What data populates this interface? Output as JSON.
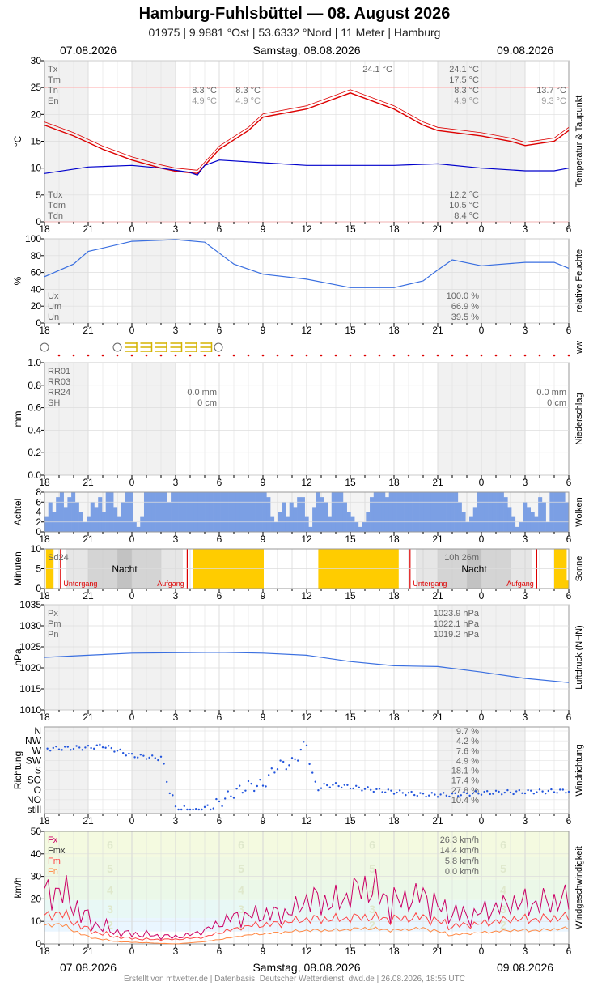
{
  "header": {
    "title": "Hamburg-Fuhlsbüttel  —  08. August 2026",
    "subtitle": "01975  |  9.9881 °Ost  |  53.6332 °Nord  |  11 Meter  |  Hamburg",
    "date_left": "07.08.2026",
    "date_center": "Samstag, 08.08.2026",
    "date_right": "09.08.2026"
  },
  "footer": {
    "date_left": "07.08.2026",
    "date_center": "Samstag, 08.08.2026",
    "date_right": "09.08.2026",
    "credits": "Erstellt von mtwetter.de | Datenbasis: Deutscher Wetterdienst, dwd.de | 26.08.2026, 18:55 UTC"
  },
  "x_axis": {
    "tick_labels": [
      "18",
      "21",
      "0",
      "3",
      "6",
      "9",
      "12",
      "15",
      "18",
      "21",
      "0",
      "3",
      "6"
    ],
    "hours_from_start": [
      0,
      3,
      6,
      9,
      12,
      15,
      18,
      21,
      24,
      27,
      30,
      33,
      36
    ]
  },
  "colors": {
    "temp": "#dd0000",
    "dew": "#0000cc",
    "humidity": "#3a6fe0",
    "clouds": "#7b9fe4",
    "sun": "#ffcc00",
    "pressure": "#3a6fe0",
    "wind_gust": "#cc0066",
    "wind_mean": "#ff4444",
    "wind_min": "#ff8844",
    "wind_dir": "#2255dd",
    "night_marker": "#dd0000",
    "grid": "#dddddd"
  },
  "chart_data": [
    {
      "id": "temperature",
      "type": "line",
      "side_label": "Temperatur & Taupunkt",
      "ylabel": "°C",
      "ylim": [
        0,
        30
      ],
      "yticks": [
        0,
        5,
        10,
        15,
        20,
        25,
        30
      ],
      "legend_top": [
        "Tx",
        "Tm",
        "Tn",
        "En"
      ],
      "values_top_day1": [
        "8.3 °C",
        "4.9 °C"
      ],
      "values_top_day1b": [
        "8.3 °C",
        "4.9 °C"
      ],
      "max_marker": "24.1 °C",
      "values_top_day2": [
        "24.1 °C",
        "17.5 °C",
        "8.3 °C",
        "4.9 °C"
      ],
      "values_top_day3": [
        "13.7 °C",
        "9.3 °C"
      ],
      "legend_bottom": [
        "Tdx",
        "Tdm",
        "Tdn"
      ],
      "values_bottom_day2": [
        "12.2 °C",
        "10.5 °C",
        "8.4 °C"
      ],
      "series": [
        {
          "name": "Temperatur",
          "points": [
            [
              0,
              18.0
            ],
            [
              2,
              16.0
            ],
            [
              4,
              13.5
            ],
            [
              6,
              11.5
            ],
            [
              8,
              10.0
            ],
            [
              9,
              9.4
            ],
            [
              10.5,
              9.0
            ],
            [
              11,
              10.5
            ],
            [
              12,
              13.5
            ],
            [
              14,
              17.0
            ],
            [
              15,
              19.5
            ],
            [
              18,
              21.0
            ],
            [
              21,
              24.0
            ],
            [
              24,
              21.0
            ],
            [
              26,
              18.0
            ],
            [
              27,
              17.0
            ],
            [
              30,
              16.0
            ],
            [
              32,
              15.0
            ],
            [
              33,
              14.2
            ],
            [
              35,
              15.0
            ],
            [
              36,
              17.0
            ]
          ]
        },
        {
          "name": "Taupunkt",
          "points": [
            [
              0,
              9.0
            ],
            [
              3,
              10.2
            ],
            [
              6,
              10.5
            ],
            [
              8,
              10.0
            ],
            [
              10,
              9.2
            ],
            [
              10.5,
              8.7
            ],
            [
              11,
              10.5
            ],
            [
              12,
              11.5
            ],
            [
              15,
              11.0
            ],
            [
              18,
              10.5
            ],
            [
              21,
              10.5
            ],
            [
              24,
              10.5
            ],
            [
              27,
              10.8
            ],
            [
              30,
              10.0
            ],
            [
              33,
              9.5
            ],
            [
              35,
              9.5
            ],
            [
              36,
              10.0
            ]
          ]
        }
      ]
    },
    {
      "id": "humidity",
      "type": "line",
      "side_label": "relative Feuchte",
      "ylabel": "%",
      "ylim": [
        0,
        100
      ],
      "yticks": [
        0,
        20,
        40,
        60,
        80,
        100
      ],
      "legend": [
        "Ux",
        "Um",
        "Un"
      ],
      "values": [
        "100.0 %",
        "66.9 %",
        "39.5 %"
      ],
      "series": [
        {
          "name": "Feuchte",
          "points": [
            [
              0,
              55
            ],
            [
              2,
              70
            ],
            [
              3,
              85
            ],
            [
              6,
              97
            ],
            [
              9,
              99
            ],
            [
              11,
              96
            ],
            [
              12,
              83
            ],
            [
              13,
              70
            ],
            [
              15,
              58
            ],
            [
              18,
              52
            ],
            [
              21,
              42
            ],
            [
              24,
              42
            ],
            [
              26,
              50
            ],
            [
              27,
              63
            ],
            [
              28,
              75
            ],
            [
              30,
              68
            ],
            [
              33,
              72
            ],
            [
              35,
              72
            ],
            [
              36,
              65
            ]
          ]
        }
      ]
    },
    {
      "id": "ww",
      "type": "table",
      "side_label": "ww",
      "symbols_note": "○ ≡ ≡ ≡ ≡ ≡ ≡ ○"
    },
    {
      "id": "precip",
      "type": "bar",
      "side_label": "Niederschlag",
      "ylabel": "mm",
      "ylim": [
        0,
        1.0
      ],
      "yticks": [
        "0.0",
        "0.2",
        "0.4",
        "0.6",
        "0.8",
        "1.0"
      ],
      "legend": [
        "RR01",
        "RR03",
        "RR24",
        "SH"
      ],
      "values_day1": [
        "0.0 mm",
        "0 cm"
      ],
      "values_day2": [
        "0.0 mm",
        "0 cm"
      ],
      "values": []
    },
    {
      "id": "clouds",
      "type": "bar",
      "side_label": "Wolken",
      "ylabel": "Achtel",
      "ylim": [
        0,
        8
      ],
      "yticks": [
        0,
        2,
        4,
        6,
        8
      ],
      "values": [
        3,
        6,
        4,
        7,
        8,
        5,
        7,
        8,
        6,
        4,
        2,
        3,
        6,
        5,
        7,
        4,
        8,
        8,
        5,
        3,
        6,
        8,
        8,
        2,
        1,
        3,
        8,
        8,
        8,
        8,
        8,
        8,
        6,
        8,
        8,
        8,
        8,
        8,
        8,
        8,
        8,
        8,
        8,
        8,
        8,
        8,
        8,
        8,
        8,
        8,
        8,
        8,
        8,
        8,
        8,
        8,
        8,
        8,
        7,
        3,
        2,
        4,
        6,
        3,
        6,
        5,
        7,
        7,
        3,
        1,
        5,
        8,
        7,
        6,
        3,
        8,
        8,
        8,
        6,
        4,
        3,
        2,
        1,
        2,
        4,
        7,
        8,
        8,
        8,
        7,
        8,
        8,
        8,
        8,
        8,
        8,
        8,
        8,
        8,
        8,
        8,
        8,
        8,
        8,
        8,
        8,
        8,
        8,
        6,
        4,
        2,
        3,
        5,
        8,
        8,
        8,
        8,
        8,
        8,
        8,
        7,
        5,
        3,
        1,
        2,
        6,
        5,
        4,
        3,
        7,
        6,
        2,
        8,
        8,
        8,
        8,
        6
      ]
    },
    {
      "id": "sunshine",
      "type": "bar",
      "side_label": "Sonne",
      "ylabel": "Minuten",
      "ylim": [
        0,
        10
      ],
      "yticks": [
        0,
        5,
        10
      ],
      "legend": "Sd24",
      "total": "10h 26m",
      "night_label": "Nacht",
      "sunset_label": "Untergang",
      "sunrise_label": "Aufgang",
      "values": [
        10,
        10,
        10,
        10,
        10,
        10,
        10,
        10,
        10,
        10,
        10,
        10,
        10,
        10,
        10,
        10,
        10,
        10,
        10,
        10,
        10,
        10,
        10,
        10,
        10,
        10,
        10,
        10,
        10,
        10,
        10,
        10,
        10,
        10,
        10,
        10,
        10,
        10,
        10,
        10,
        10,
        10,
        10,
        10,
        10,
        10,
        10,
        10,
        10,
        10,
        10,
        10,
        10,
        10,
        10,
        10,
        10,
        10,
        10,
        10,
        10,
        10,
        10,
        10,
        10,
        10,
        10,
        10,
        10,
        10,
        2,
        4,
        2,
        3,
        1,
        2,
        3,
        1,
        2,
        4,
        3,
        5,
        1,
        2,
        4,
        3,
        2,
        3,
        2,
        1,
        3,
        5,
        2,
        4,
        1,
        3,
        2,
        1,
        4,
        3,
        2,
        1,
        3,
        8,
        10,
        10,
        10,
        10,
        10,
        10,
        10,
        10,
        10,
        10,
        10,
        10,
        10,
        10,
        10,
        10,
        10,
        10,
        10,
        10,
        10,
        10,
        10,
        10,
        10,
        10,
        10,
        10,
        10,
        10,
        10,
        10,
        10,
        10,
        10,
        10,
        10,
        10,
        10,
        10,
        10,
        10,
        10,
        10,
        10
      ]
    },
    {
      "id": "pressure",
      "type": "line",
      "side_label": "Luftdruck (NHN)",
      "ylabel": "hPa",
      "ylim": [
        1010,
        1035
      ],
      "yticks": [
        1010,
        1015,
        1020,
        1025,
        1030,
        1035
      ],
      "legend": [
        "Px",
        "Pm",
        "Pn"
      ],
      "values": [
        "1023.9 hPa",
        "1022.1 hPa",
        "1019.2 hPa"
      ],
      "series": [
        {
          "name": "Luftdruck",
          "points": [
            [
              0,
              1022.5
            ],
            [
              3,
              1023.0
            ],
            [
              6,
              1023.5
            ],
            [
              9,
              1023.6
            ],
            [
              12,
              1023.7
            ],
            [
              15,
              1023.5
            ],
            [
              18,
              1023.0
            ],
            [
              21,
              1021.5
            ],
            [
              24,
              1020.5
            ],
            [
              27,
              1020.3
            ],
            [
              30,
              1019.0
            ],
            [
              33,
              1017.5
            ],
            [
              36,
              1016.5
            ]
          ]
        }
      ]
    },
    {
      "id": "wind_dir",
      "type": "scatter",
      "side_label": "Windrichtung",
      "ylabel": "Richtung",
      "categories": [
        "N",
        "NW",
        "W",
        "SW",
        "S",
        "SO",
        "O",
        "NO",
        "still"
      ],
      "percentages": [
        "9.7 %",
        "4.2 %",
        "7.6 %",
        "4.9 %",
        "18.1 %",
        "17.4 %",
        "27.8 %",
        "10.4 %"
      ]
    },
    {
      "id": "wind_speed",
      "type": "line",
      "side_label": "Windgeschwindigkeit",
      "ylabel": "km/h",
      "ylim": [
        0,
        50
      ],
      "yticks": [
        0,
        10,
        20,
        30,
        40,
        50
      ],
      "legend": [
        "Fx",
        "Fmx",
        "Fm",
        "Fn"
      ],
      "values": [
        "26.3 km/h",
        "14.4 km/h",
        "5.8 km/h",
        "0.0 km/h"
      ],
      "beaufort": [
        "2",
        "3",
        "4",
        "5",
        "6"
      ],
      "series": [
        {
          "name": "Fx",
          "points": [
            [
              0,
              22
            ],
            [
              1,
              24
            ],
            [
              2,
              18
            ],
            [
              3,
              10
            ],
            [
              5,
              5
            ],
            [
              7,
              4
            ],
            [
              9,
              3
            ],
            [
              10,
              4
            ],
            [
              11,
              6
            ],
            [
              12,
              9
            ],
            [
              13,
              12
            ],
            [
              15,
              13
            ],
            [
              17,
              14
            ],
            [
              18,
              20
            ],
            [
              20,
              18
            ],
            [
              21,
              22
            ],
            [
              22,
              26
            ],
            [
              24,
              18
            ],
            [
              26,
              22
            ],
            [
              27,
              16
            ],
            [
              29,
              12
            ],
            [
              30,
              14
            ],
            [
              32,
              18
            ],
            [
              34,
              18
            ],
            [
              36,
              20
            ]
          ]
        },
        {
          "name": "Fm",
          "points": [
            [
              0,
              12
            ],
            [
              1,
              14
            ],
            [
              2,
              10
            ],
            [
              3,
              6
            ],
            [
              5,
              3
            ],
            [
              7,
              2
            ],
            [
              9,
              2
            ],
            [
              11,
              3
            ],
            [
              12,
              5
            ],
            [
              14,
              8
            ],
            [
              16,
              9
            ],
            [
              18,
              11
            ],
            [
              20,
              11
            ],
            [
              22,
              12
            ],
            [
              24,
              11
            ],
            [
              26,
              12
            ],
            [
              28,
              8
            ],
            [
              30,
              9
            ],
            [
              32,
              11
            ],
            [
              34,
              11
            ],
            [
              36,
              12
            ]
          ]
        },
        {
          "name": "Fn",
          "points": [
            [
              0,
              8
            ],
            [
              1,
              9
            ],
            [
              2,
              6
            ],
            [
              3,
              3
            ],
            [
              5,
              1
            ],
            [
              7,
              0.5
            ],
            [
              9,
              0
            ],
            [
              11,
              1
            ],
            [
              12,
              2
            ],
            [
              14,
              4
            ],
            [
              16,
              5
            ],
            [
              18,
              6
            ],
            [
              20,
              6
            ],
            [
              22,
              7
            ],
            [
              24,
              6
            ],
            [
              26,
              7
            ],
            [
              28,
              4
            ],
            [
              30,
              5
            ],
            [
              32,
              6
            ],
            [
              34,
              6
            ],
            [
              36,
              7
            ]
          ]
        }
      ]
    }
  ]
}
